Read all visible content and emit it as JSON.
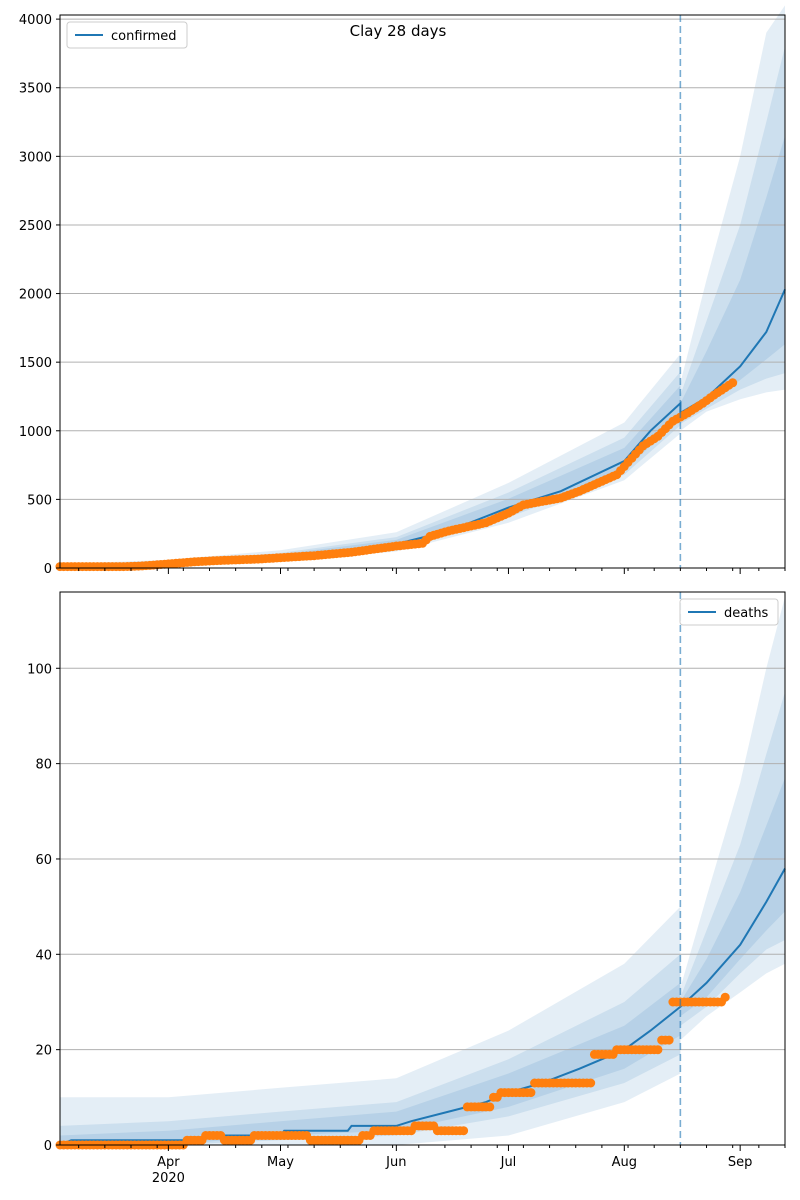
{
  "figure_title": "Clay 28 days",
  "colors": {
    "line": "#1f77b4",
    "points": "#ff7f0e",
    "band": "#1f77b4",
    "grid": "#b0b0b0",
    "forecast_marker": "#1f77b4"
  },
  "chart_data": [
    {
      "type": "line",
      "title": "Clay 28 days",
      "xlabel": "",
      "ylabel": "",
      "x_axis": {
        "type": "date",
        "start": "2020-03-03",
        "end": "2020-09-13",
        "major_ticks": [
          {
            "date": "2020-04-01",
            "label": "Apr",
            "sublabel": "2020"
          },
          {
            "date": "2020-05-01",
            "label": "May"
          },
          {
            "date": "2020-06-01",
            "label": "Jun"
          },
          {
            "date": "2020-07-01",
            "label": "Jul"
          },
          {
            "date": "2020-08-01",
            "label": "Aug"
          },
          {
            "date": "2020-09-01",
            "label": "Sep"
          }
        ]
      },
      "ylim": [
        0,
        4030
      ],
      "yticks": [
        0,
        500,
        1000,
        1500,
        2000,
        2500,
        3000,
        3500,
        4000
      ],
      "grid": "horizontal",
      "legend": {
        "entries": [
          "confirmed"
        ],
        "placement": "top-left"
      },
      "forecast_start": "2020-08-16",
      "series": [
        {
          "name": "confirmed",
          "kind": "model-line",
          "points": [
            [
              "2020-03-03",
              5
            ],
            [
              "2020-03-20",
              10
            ],
            [
              "2020-04-01",
              30
            ],
            [
              "2020-04-15",
              55
            ],
            [
              "2020-05-01",
              80
            ],
            [
              "2020-05-15",
              115
            ],
            [
              "2020-06-01",
              175
            ],
            [
              "2020-06-15",
              270
            ],
            [
              "2020-07-01",
              440
            ],
            [
              "2020-07-15",
              560
            ],
            [
              "2020-08-01",
              780
            ],
            [
              "2020-08-08",
              1000
            ],
            [
              "2020-08-16",
              1200
            ],
            [
              "2020-08-16",
              1130
            ],
            [
              "2020-08-23",
              1240
            ],
            [
              "2020-09-01",
              1470
            ],
            [
              "2020-09-08",
              1720
            ],
            [
              "2020-09-13",
              2030
            ]
          ]
        },
        {
          "kind": "observed",
          "points": [
            [
              "2020-03-03",
              10
            ],
            [
              "2020-03-20",
              10
            ],
            [
              "2020-03-25",
              15
            ],
            [
              "2020-04-01",
              30
            ],
            [
              "2020-04-08",
              45
            ],
            [
              "2020-04-15",
              55
            ],
            [
              "2020-04-25",
              65
            ],
            [
              "2020-05-01",
              75
            ],
            [
              "2020-05-10",
              90
            ],
            [
              "2020-05-20",
              115
            ],
            [
              "2020-06-01",
              160
            ],
            [
              "2020-06-08",
              180
            ],
            [
              "2020-06-10",
              230
            ],
            [
              "2020-06-15",
              270
            ],
            [
              "2020-06-25",
              330
            ],
            [
              "2020-07-01",
              400
            ],
            [
              "2020-07-05",
              460
            ],
            [
              "2020-07-15",
              510
            ],
            [
              "2020-07-20",
              560
            ],
            [
              "2020-07-30",
              680
            ],
            [
              "2020-08-01",
              740
            ],
            [
              "2020-08-03",
              800
            ],
            [
              "2020-08-06",
              890
            ],
            [
              "2020-08-10",
              960
            ],
            [
              "2020-08-14",
              1070
            ],
            [
              "2020-08-18",
              1130
            ],
            [
              "2020-08-22",
              1200
            ],
            [
              "2020-08-25",
              1260
            ],
            [
              "2020-08-30",
              1350
            ]
          ]
        },
        {
          "kind": "band",
          "level": 1,
          "opacity": 0.12,
          "points": [
            [
              "2020-03-03",
              0,
              30
            ],
            [
              "2020-04-01",
              10,
              60
            ],
            [
              "2020-05-01",
              45,
              130
            ],
            [
              "2020-06-01",
              120,
              260
            ],
            [
              "2020-07-01",
              330,
              620
            ],
            [
              "2020-08-01",
              640,
              1060
            ],
            [
              "2020-08-16",
              980,
              1560
            ],
            [
              "2020-08-16",
              1000,
              1350
            ],
            [
              "2020-08-23",
              1140,
              2100
            ],
            [
              "2020-09-01",
              1230,
              3000
            ],
            [
              "2020-09-08",
              1280,
              3900
            ],
            [
              "2020-09-13",
              1300,
              4100
            ]
          ]
        },
        {
          "kind": "band",
          "level": 2,
          "opacity": 0.12,
          "points": [
            [
              "2020-03-03",
              0,
              20
            ],
            [
              "2020-04-01",
              15,
              45
            ],
            [
              "2020-05-01",
              55,
              110
            ],
            [
              "2020-06-01",
              140,
              225
            ],
            [
              "2020-07-01",
              370,
              550
            ],
            [
              "2020-08-01",
              680,
              950
            ],
            [
              "2020-08-16",
              1040,
              1430
            ],
            [
              "2020-08-16",
              1050,
              1260
            ],
            [
              "2020-08-23",
              1160,
              1800
            ],
            [
              "2020-09-01",
              1300,
              2500
            ],
            [
              "2020-09-08",
              1380,
              3250
            ],
            [
              "2020-09-13",
              1420,
              3800
            ]
          ]
        },
        {
          "kind": "band",
          "level": 3,
          "opacity": 0.12,
          "points": [
            [
              "2020-03-03",
              0,
              12
            ],
            [
              "2020-04-01",
              20,
              40
            ],
            [
              "2020-05-01",
              62,
              100
            ],
            [
              "2020-06-01",
              152,
              205
            ],
            [
              "2020-07-01",
              400,
              505
            ],
            [
              "2020-08-01",
              715,
              875
            ],
            [
              "2020-08-16",
              1090,
              1330
            ],
            [
              "2020-08-16",
              1080,
              1200
            ],
            [
              "2020-08-23",
              1190,
              1580
            ],
            [
              "2020-09-01",
              1370,
              2100
            ],
            [
              "2020-09-08",
              1520,
              2700
            ],
            [
              "2020-09-13",
              1630,
              3150
            ]
          ]
        }
      ]
    },
    {
      "type": "line",
      "xlabel": "",
      "ylabel": "",
      "x_axis": {
        "type": "date",
        "start": "2020-03-03",
        "end": "2020-09-13",
        "major_ticks": [
          {
            "date": "2020-04-01",
            "label": "Apr",
            "sublabel": "2020"
          },
          {
            "date": "2020-05-01",
            "label": "May"
          },
          {
            "date": "2020-06-01",
            "label": "Jun"
          },
          {
            "date": "2020-07-01",
            "label": "Jul"
          },
          {
            "date": "2020-08-01",
            "label": "Aug"
          },
          {
            "date": "2020-09-01",
            "label": "Sep"
          }
        ]
      },
      "ylim": [
        0,
        116
      ],
      "yticks": [
        0,
        20,
        40,
        60,
        80,
        100
      ],
      "grid": "horizontal",
      "legend": {
        "entries": [
          "deaths"
        ],
        "placement": "top-right"
      },
      "forecast_start": "2020-08-16",
      "series": [
        {
          "name": "deaths",
          "kind": "model-line",
          "points": [
            [
              "2020-03-03",
              0
            ],
            [
              "2020-03-06",
              1
            ],
            [
              "2020-04-10",
              1
            ],
            [
              "2020-04-11",
              2
            ],
            [
              "2020-05-01",
              2
            ],
            [
              "2020-05-02",
              3
            ],
            [
              "2020-05-19",
              3
            ],
            [
              "2020-05-20",
              4
            ],
            [
              "2020-06-01",
              4
            ],
            [
              "2020-06-05",
              5
            ],
            [
              "2020-06-15",
              7
            ],
            [
              "2020-06-25",
              9
            ],
            [
              "2020-07-01",
              11
            ],
            [
              "2020-07-10",
              13
            ],
            [
              "2020-07-20",
              16
            ],
            [
              "2020-08-01",
              20
            ],
            [
              "2020-08-08",
              24
            ],
            [
              "2020-08-16",
              29
            ],
            [
              "2020-08-23",
              34
            ],
            [
              "2020-09-01",
              42
            ],
            [
              "2020-09-08",
              51
            ],
            [
              "2020-09-13",
              58
            ]
          ]
        },
        {
          "kind": "observed",
          "points": [
            [
              "2020-03-03",
              0
            ],
            [
              "2020-04-06",
              1
            ],
            [
              "2020-04-11",
              2
            ],
            [
              "2020-04-16",
              1
            ],
            [
              "2020-04-24",
              2
            ],
            [
              "2020-05-09",
              1
            ],
            [
              "2020-05-23",
              2
            ],
            [
              "2020-05-26",
              3
            ],
            [
              "2020-06-06",
              4
            ],
            [
              "2020-06-12",
              3
            ],
            [
              "2020-06-20",
              8
            ],
            [
              "2020-06-27",
              10
            ],
            [
              "2020-06-29",
              11
            ],
            [
              "2020-07-08",
              13
            ],
            [
              "2020-07-24",
              19
            ],
            [
              "2020-07-30",
              20
            ],
            [
              "2020-08-02",
              20
            ],
            [
              "2020-08-11",
              22
            ],
            [
              "2020-08-14",
              30
            ],
            [
              "2020-08-27",
              30
            ],
            [
              "2020-08-28",
              31
            ]
          ]
        },
        {
          "kind": "band",
          "level": 1,
          "opacity": 0.12,
          "points": [
            [
              "2020-03-03",
              0,
              10
            ],
            [
              "2020-04-01",
              0,
              10
            ],
            [
              "2020-05-01",
              0,
              12
            ],
            [
              "2020-06-01",
              0,
              14
            ],
            [
              "2020-07-01",
              2,
              24
            ],
            [
              "2020-08-01",
              9,
              38
            ],
            [
              "2020-08-16",
              15,
              50
            ],
            [
              "2020-08-16",
              22,
              33
            ],
            [
              "2020-08-23",
              27,
              52
            ],
            [
              "2020-09-01",
              32,
              76
            ],
            [
              "2020-09-08",
              36,
              100
            ],
            [
              "2020-09-13",
              38,
              115
            ]
          ]
        },
        {
          "kind": "band",
          "level": 2,
          "opacity": 0.12,
          "points": [
            [
              "2020-03-03",
              0,
              4
            ],
            [
              "2020-04-01",
              0,
              5
            ],
            [
              "2020-05-01",
              1,
              7
            ],
            [
              "2020-06-01",
              2,
              9
            ],
            [
              "2020-07-01",
              6,
              18
            ],
            [
              "2020-08-01",
              13,
              30
            ],
            [
              "2020-08-16",
              19,
              40
            ],
            [
              "2020-08-16",
              25,
              31
            ],
            [
              "2020-08-23",
              29,
              45
            ],
            [
              "2020-09-01",
              36,
              63
            ],
            [
              "2020-09-08",
              41,
              82
            ],
            [
              "2020-09-13",
              43,
              95
            ]
          ]
        },
        {
          "kind": "band",
          "level": 3,
          "opacity": 0.12,
          "points": [
            [
              "2020-03-03",
              0,
              2
            ],
            [
              "2020-04-01",
              0,
              3
            ],
            [
              "2020-05-01",
              2,
              5
            ],
            [
              "2020-06-01",
              3,
              7
            ],
            [
              "2020-07-01",
              8,
              15
            ],
            [
              "2020-08-01",
              16,
              25
            ],
            [
              "2020-08-16",
              23,
              34
            ],
            [
              "2020-08-16",
              27,
              30
            ],
            [
              "2020-08-23",
              31,
              39
            ],
            [
              "2020-09-01",
              39,
              53
            ],
            [
              "2020-09-08",
              45,
              67
            ],
            [
              "2020-09-13",
              49,
              77
            ]
          ]
        }
      ]
    }
  ]
}
